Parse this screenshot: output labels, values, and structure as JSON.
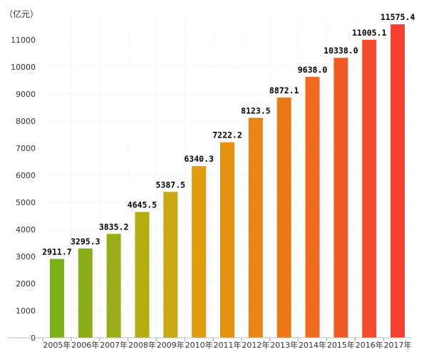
{
  "chart_data": {
    "type": "bar",
    "unit_label": "（亿元）",
    "categories": [
      "2005年",
      "2006年",
      "2007年",
      "2008年",
      "2009年",
      "2010年",
      "2011年",
      "2012年",
      "2013年",
      "2014年",
      "2015年",
      "2016年",
      "2017年"
    ],
    "values": [
      2911.7,
      3295.3,
      3835.2,
      4645.5,
      5387.5,
      6340.3,
      7222.2,
      8123.5,
      8872.1,
      9638.0,
      10338.0,
      11005.1,
      11575.4
    ],
    "value_labels": [
      "2911.7",
      "3295.3",
      "3835.2",
      "4645.5",
      "5387.5",
      "6340.3",
      "7222.2",
      "8123.5",
      "8872.1",
      "9638.0",
      "10338.0",
      "11005.1",
      "11575.4"
    ],
    "y_ticks": [
      "0",
      "1000",
      "2000",
      "3000",
      "4000",
      "5000",
      "6000",
      "7000",
      "8000",
      "9000",
      "10000",
      "11000"
    ],
    "ylim": [
      0,
      12000
    ],
    "colors": [
      "#7dae1a",
      "#8aae18",
      "#9aad16",
      "#b4ad12",
      "#c9a80f",
      "#df9c0e",
      "#e69210",
      "#ea8414",
      "#ec7818",
      "#ee6a1f",
      "#f05a26",
      "#f24b2c",
      "#f43e31"
    ],
    "grid": true,
    "legend": "none"
  }
}
